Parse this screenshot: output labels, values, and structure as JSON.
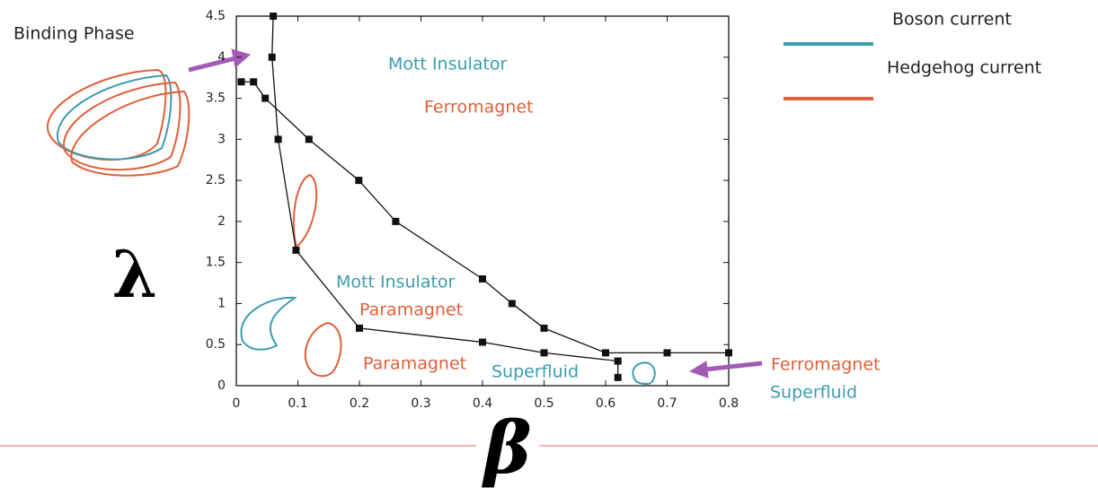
{
  "chart_data": {
    "type": "line",
    "x_label": "β",
    "y_label": "λ",
    "xlim": [
      0,
      0.8
    ],
    "ylim": [
      0,
      4.5
    ],
    "xticks": [
      0,
      0.1,
      0.2,
      0.3,
      0.4,
      0.5,
      0.6,
      0.7,
      0.8
    ],
    "yticks": [
      0,
      0.5,
      1,
      1.5,
      2,
      2.5,
      3,
      3.5,
      4,
      4.5
    ],
    "series": [
      {
        "color": "#111111",
        "x": [
          0.06,
          0.058,
          0.068,
          0.097,
          0.2,
          0.4,
          0.5,
          0.62,
          0.62
        ],
        "values": [
          4.5,
          4.0,
          3.0,
          1.65,
          0.7,
          0.53,
          0.4,
          0.3,
          0.1
        ]
      },
      {
        "color": "#111111",
        "x": [
          0.008,
          0.028,
          0.047,
          0.118,
          0.199,
          0.259,
          0.4,
          0.448,
          0.5,
          0.6,
          0.7,
          0.8
        ],
        "values": [
          3.7,
          3.7,
          3.5,
          3.0,
          2.5,
          2.0,
          1.3,
          1.0,
          0.7,
          0.4,
          0.4,
          0.4
        ]
      }
    ],
    "legend": [
      {
        "name": "Boson current",
        "color": "#3b9db0"
      },
      {
        "name": "Hedgehog current",
        "color": "#e0603a"
      }
    ],
    "annotations": [
      {
        "text": "Binding Phase",
        "color": "#222222"
      },
      {
        "text": "Mott Insulator",
        "color": "#3b9db0"
      },
      {
        "text": "Ferromagnet",
        "color": "#e0603a"
      },
      {
        "text": "Mott Insulator",
        "color": "#3b9db0"
      },
      {
        "text": "Paramagnet",
        "color": "#e0603a"
      },
      {
        "text": "Paramagnet",
        "color": "#e0603a"
      },
      {
        "text": "Superfluid",
        "color": "#3b9db0"
      },
      {
        "text": "Ferromagnet",
        "color": "#e0603a"
      },
      {
        "text": "Superfluid",
        "color": "#3b9db0"
      }
    ]
  }
}
